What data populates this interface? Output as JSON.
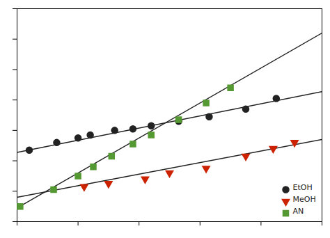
{
  "chart_data": {
    "type": "scatter",
    "series": [
      {
        "name": "EtOH",
        "type": "scatter",
        "color": "#222222",
        "marker": "circle",
        "x": [
          0.04,
          0.13,
          0.2,
          0.24,
          0.32,
          0.38,
          0.44,
          0.53,
          0.63,
          0.75,
          0.85
        ],
        "values": [
          0.47,
          0.52,
          0.55,
          0.57,
          0.6,
          0.61,
          0.63,
          0.66,
          0.69,
          0.74,
          0.81
        ]
      },
      {
        "name": "MeOH",
        "type": "scatter",
        "color": "#cc2200",
        "marker": "triangle-down",
        "x": [
          0.22,
          0.3,
          0.42,
          0.5,
          0.62,
          0.75,
          0.84,
          0.91
        ],
        "values": [
          0.23,
          0.25,
          0.28,
          0.32,
          0.35,
          0.43,
          0.48,
          0.52
        ]
      },
      {
        "name": "AN",
        "type": "scatter",
        "color": "#559933",
        "marker": "square",
        "x": [
          0.01,
          0.12,
          0.2,
          0.25,
          0.31,
          0.38,
          0.44,
          0.53,
          0.62,
          0.7
        ],
        "values": [
          0.1,
          0.21,
          0.3,
          0.36,
          0.43,
          0.51,
          0.57,
          0.67,
          0.78,
          0.88
        ]
      },
      {
        "type": "line",
        "color": "#222222",
        "line_style": "solid",
        "x": [
          0,
          1
        ],
        "values": [
          0.455,
          0.855
        ]
      },
      {
        "type": "line",
        "color": "#222222",
        "line_style": "solid",
        "x": [
          0,
          1
        ],
        "values": [
          0.16,
          0.54
        ]
      },
      {
        "type": "line",
        "color": "#222222",
        "line_style": "solid",
        "x": [
          0,
          1
        ],
        "values": [
          0.09,
          1.24
        ]
      }
    ],
    "xlim": [
      0,
      1
    ],
    "ylim": [
      0,
      1.4
    ],
    "xticks": [
      0,
      0.2,
      0.4,
      0.6,
      0.8,
      1
    ],
    "yticks": [
      0,
      0.2,
      0.4,
      0.6,
      0.8,
      1,
      1.2,
      1.4
    ],
    "tick_labels": false,
    "grid": false,
    "legend": "lower right"
  }
}
